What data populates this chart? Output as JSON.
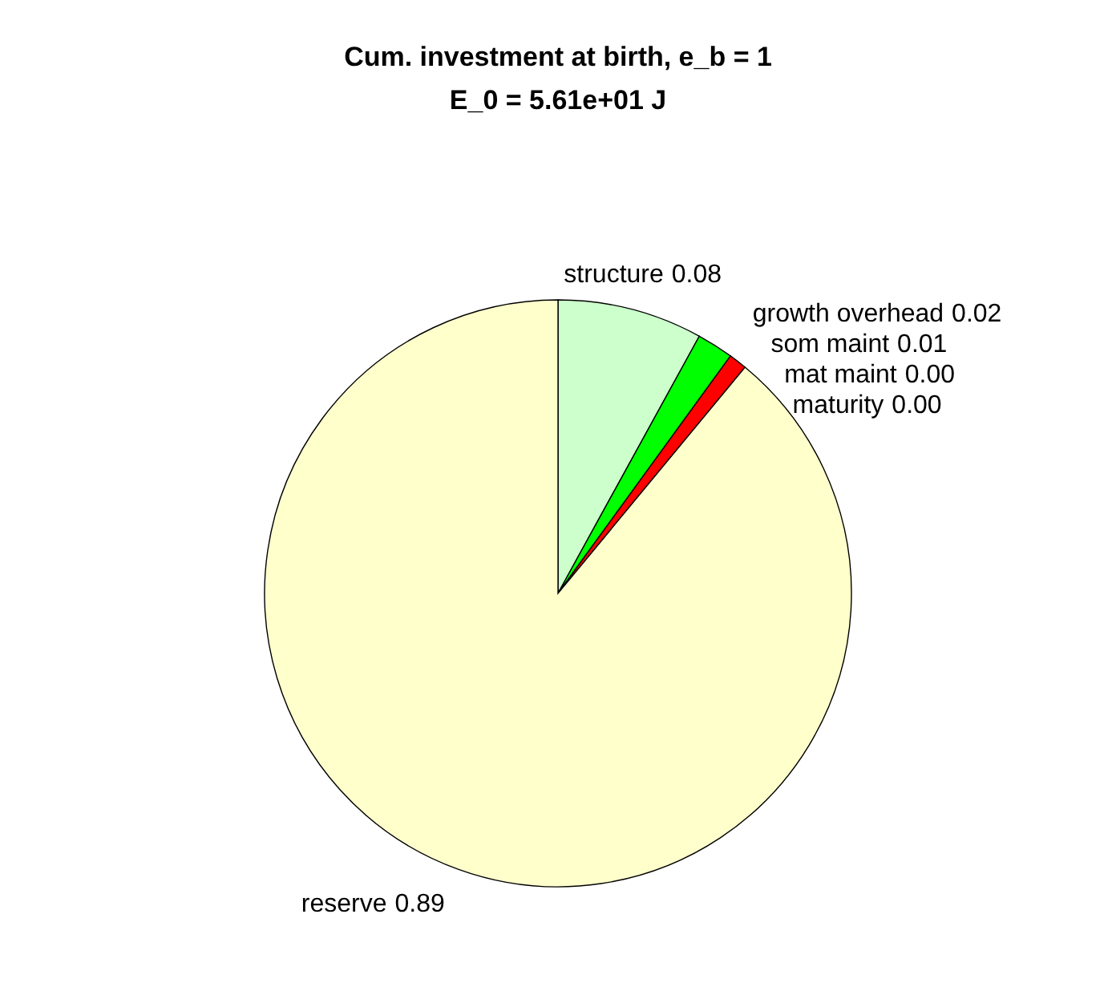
{
  "chart_data": {
    "type": "pie",
    "title": "Cum. investment at birth, e_b = 1",
    "subtitle": "E_0 = 5.61e+01 J",
    "categories": [
      "structure",
      "growth overhead",
      "som maint",
      "mat maint",
      "maturity",
      "reserve"
    ],
    "values": [
      0.08,
      0.02,
      0.01,
      0.0,
      0.0,
      0.89
    ],
    "colors": [
      "#ccffcc",
      "#00ff00",
      "#ff0000",
      "#0000ff",
      "#ff00ff",
      "#ffffcc"
    ],
    "value_labels": [
      "0.08",
      "0.02",
      "0.01",
      "0.00",
      "0.00",
      "0.89"
    ]
  }
}
